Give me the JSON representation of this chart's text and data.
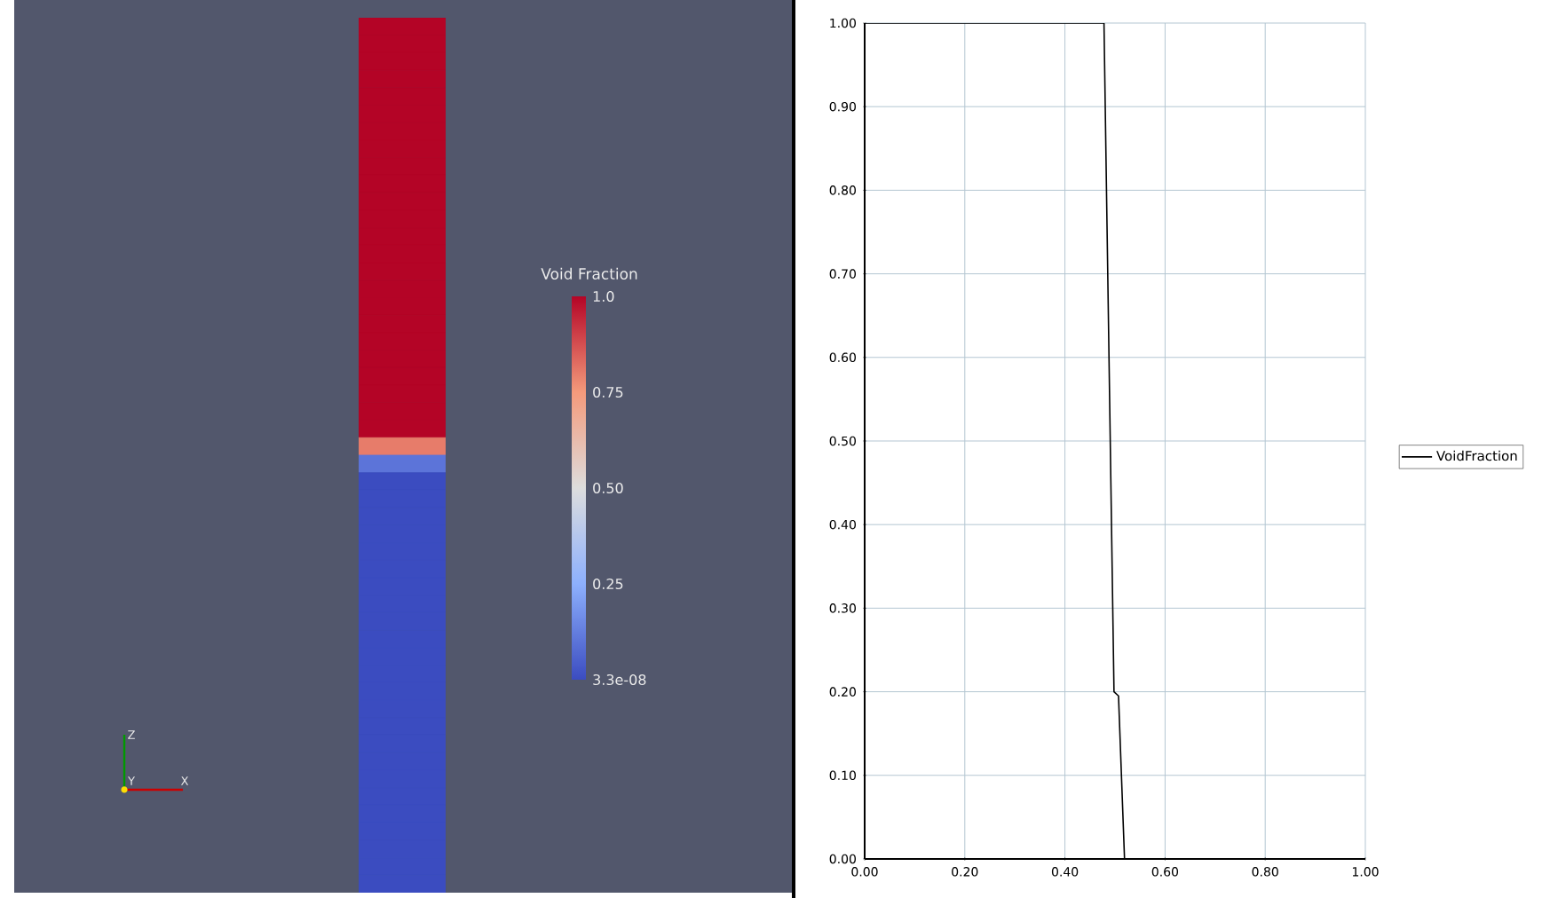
{
  "chart_data": [
    {
      "type": "heatmap",
      "categories": [
        null
      ],
      "y_categories": [
        null,
        null,
        null,
        null,
        null,
        null,
        null,
        null,
        null,
        null,
        null,
        null,
        null,
        null,
        null,
        null,
        null,
        null,
        null,
        null,
        null,
        null,
        null,
        null,
        null,
        null,
        null,
        null,
        null,
        null,
        null,
        null,
        null,
        null,
        null,
        null,
        null,
        null,
        null,
        null,
        null,
        null,
        null,
        null,
        null,
        null,
        null,
        null,
        null,
        null
      ],
      "cells": [
        [
          1.0
        ],
        [
          1.0
        ],
        [
          1.0
        ],
        [
          1.0
        ],
        [
          1.0
        ],
        [
          1.0
        ],
        [
          1.0
        ],
        [
          1.0
        ],
        [
          1.0
        ],
        [
          1.0
        ],
        [
          1.0
        ],
        [
          1.0
        ],
        [
          1.0
        ],
        [
          1.0
        ],
        [
          1.0
        ],
        [
          1.0
        ],
        [
          1.0
        ],
        [
          1.0
        ],
        [
          1.0
        ],
        [
          1.0
        ],
        [
          1.0
        ],
        [
          1.0
        ],
        [
          1.0
        ],
        [
          1.0
        ],
        [
          0.8
        ],
        [
          0.1
        ],
        [
          3.3e-08
        ],
        [
          3.3e-08
        ],
        [
          3.3e-08
        ],
        [
          3.3e-08
        ],
        [
          3.3e-08
        ],
        [
          3.3e-08
        ],
        [
          3.3e-08
        ],
        [
          3.3e-08
        ],
        [
          3.3e-08
        ],
        [
          3.3e-08
        ],
        [
          3.3e-08
        ],
        [
          3.3e-08
        ],
        [
          3.3e-08
        ],
        [
          3.3e-08
        ],
        [
          3.3e-08
        ],
        [
          3.3e-08
        ],
        [
          3.3e-08
        ],
        [
          3.3e-08
        ],
        [
          3.3e-08
        ],
        [
          3.3e-08
        ],
        [
          3.3e-08
        ],
        [
          3.3e-08
        ],
        [
          3.3e-08
        ],
        [
          3.3e-08
        ]
      ],
      "clabel": "Void Fraction",
      "clim": [
        3.3e-08,
        1.0
      ],
      "cticks": [
        {
          "value": 3.3e-08,
          "label": "3.3e-08"
        },
        {
          "value": 0.25,
          "label": "0.25"
        },
        {
          "value": 0.5,
          "label": "0.50"
        },
        {
          "value": 0.75,
          "label": "0.75"
        },
        {
          "value": 1.0,
          "label": "1.0"
        }
      ],
      "annotations": [
        "Z",
        "Y",
        "X"
      ]
    },
    {
      "type": "line",
      "x": [
        0,
        0.478,
        0.498,
        0.507,
        0.519,
        1.0
      ],
      "series": [
        {
          "name": "VoidFraction",
          "color": "#000000",
          "values": [
            1.0,
            1.0,
            0.2,
            0.195,
            0.0,
            0.0
          ]
        }
      ],
      "xlim": [
        0,
        1
      ],
      "ylim": [
        0,
        1
      ],
      "xticks": [
        {
          "value": 0,
          "label": "0.00"
        },
        {
          "value": 0.2,
          "label": "0.20"
        },
        {
          "value": 0.4,
          "label": "0.40"
        },
        {
          "value": 0.6,
          "label": "0.60"
        },
        {
          "value": 0.8,
          "label": "0.80"
        },
        {
          "value": 1.0,
          "label": "1.00"
        }
      ],
      "yticks": [
        {
          "value": 0,
          "label": "0.00"
        },
        {
          "value": 0.1,
          "label": "0.10"
        },
        {
          "value": 0.2,
          "label": "0.20"
        },
        {
          "value": 0.3,
          "label": "0.30"
        },
        {
          "value": 0.4,
          "label": "0.40"
        },
        {
          "value": 0.5,
          "label": "0.50"
        },
        {
          "value": 0.6,
          "label": "0.60"
        },
        {
          "value": 0.7,
          "label": "0.70"
        },
        {
          "value": 0.8,
          "label": "0.80"
        },
        {
          "value": 0.9,
          "label": "0.90"
        },
        {
          "value": 1.0,
          "label": "1.00"
        }
      ],
      "grid": true,
      "legend": "right",
      "marker": "none",
      "line_style": "solid"
    }
  ]
}
